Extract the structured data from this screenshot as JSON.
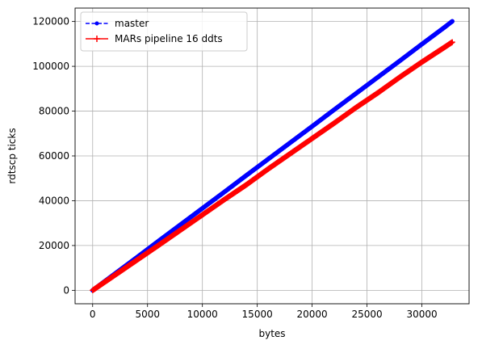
{
  "chart_data": {
    "type": "line",
    "xlabel": "bytes",
    "ylabel": "rdtscp ticks",
    "xlim": [
      -1600,
      34300
    ],
    "ylim": [
      -6000,
      126000
    ],
    "xticks": [
      0,
      5000,
      10000,
      15000,
      20000,
      25000,
      30000
    ],
    "yticks": [
      0,
      20000,
      40000,
      60000,
      80000,
      100000,
      120000
    ],
    "xtick_labels": [
      "0",
      "5000",
      "10000",
      "15000",
      "20000",
      "25000",
      "30000"
    ],
    "ytick_labels": [
      "0",
      "20000",
      "40000",
      "60000",
      "80000",
      "100000",
      "120000"
    ],
    "grid": true,
    "legend_position": "top-left",
    "series": [
      {
        "name": "master",
        "color": "#0000ff",
        "linestyle": "dashed",
        "marker": "point",
        "x": [
          0,
          2000,
          4000,
          6000,
          8000,
          10000,
          12000,
          14000,
          16000,
          18000,
          20000,
          22000,
          24000,
          26000,
          28000,
          30000,
          32000,
          32768
        ],
        "y": [
          0,
          7300,
          14600,
          22000,
          29300,
          36600,
          43900,
          51300,
          58600,
          65900,
          73200,
          80600,
          87900,
          95200,
          102500,
          109900,
          117200,
          120100
        ]
      },
      {
        "name": "MARs pipeline 16 ddts",
        "color": "#ff0000",
        "linestyle": "solid",
        "marker": "plus",
        "x": [
          0,
          2000,
          4000,
          6000,
          8000,
          10000,
          12000,
          14000,
          16000,
          18000,
          20000,
          22000,
          24000,
          26000,
          28000,
          30000,
          32000,
          32768
        ],
        "y": [
          0,
          6700,
          13400,
          20100,
          26900,
          33700,
          40500,
          47100,
          54200,
          61000,
          67800,
          74600,
          81600,
          88200,
          95200,
          101900,
          108300,
          110800
        ]
      }
    ]
  }
}
